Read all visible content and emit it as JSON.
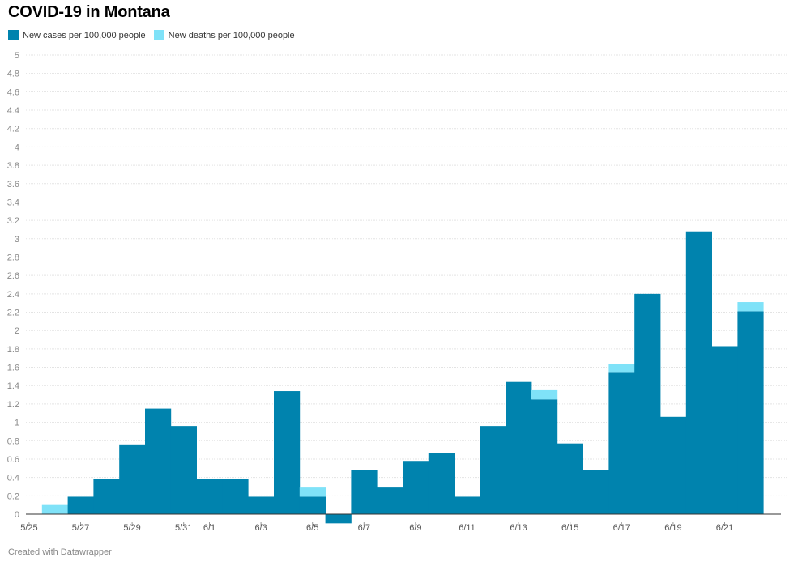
{
  "chart_data": {
    "type": "bar",
    "title": "COVID-19 in Montana",
    "categories": [
      "5/25",
      "5/26",
      "5/27",
      "5/28",
      "5/29",
      "5/30",
      "5/31",
      "6/1",
      "6/2",
      "6/3",
      "6/4",
      "6/5",
      "6/6",
      "6/7",
      "6/8",
      "6/9",
      "6/10",
      "6/11",
      "6/12",
      "6/13",
      "6/14",
      "6/15",
      "6/16",
      "6/17",
      "6/18",
      "6/19",
      "6/20",
      "6/21",
      "6/22"
    ],
    "tick_labels": [
      "5/25",
      "5/27",
      "5/29",
      "5/31",
      "6/1",
      "6/3",
      "6/5",
      "6/7",
      "6/9",
      "6/11",
      "6/13",
      "6/15",
      "6/17",
      "6/19",
      "6/21"
    ],
    "series": [
      {
        "name": "New cases per 100,000 people",
        "color": "#0083ae",
        "values": [
          0,
          0,
          0.19,
          0.38,
          0.76,
          1.15,
          0.96,
          0.38,
          0.38,
          0.19,
          1.34,
          0.19,
          -0.1,
          0.48,
          0.29,
          0.58,
          0.67,
          0.19,
          0.96,
          1.44,
          1.25,
          0.77,
          0.48,
          1.54,
          2.4,
          1.06,
          3.08,
          1.83,
          2.21
        ]
      },
      {
        "name": "New deaths per 100,000 people",
        "color": "#7fe2f8",
        "values": [
          0,
          0.1,
          0,
          0,
          0,
          0,
          0,
          0,
          0,
          0,
          0,
          0.1,
          0,
          0,
          0,
          0,
          0,
          0,
          0,
          0,
          0.1,
          0,
          0,
          0.1,
          0,
          0,
          0,
          0,
          0.1
        ]
      }
    ],
    "ylim": [
      -0.1,
      5
    ],
    "yticks": [
      0,
      0.2,
      0.4,
      0.6,
      0.8,
      1,
      1.2,
      1.4,
      1.6,
      1.8,
      2,
      2.2,
      2.4,
      2.6,
      2.8,
      3,
      3.2,
      3.4,
      3.6,
      3.8,
      4,
      4.2,
      4.4,
      4.6,
      4.8,
      5
    ],
    "xlabel": "",
    "ylabel": "",
    "grid": true,
    "legend_position": "top-left",
    "stacked": true
  },
  "footer": "Created with Datawrapper"
}
